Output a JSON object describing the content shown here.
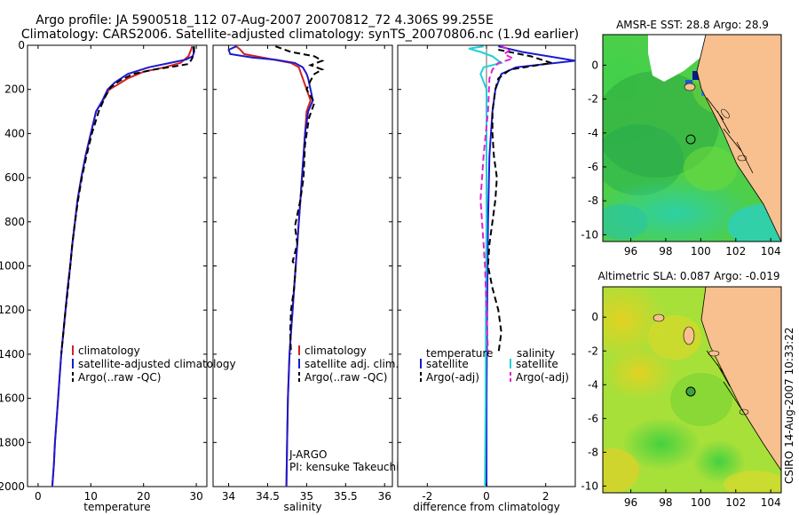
{
  "header": {
    "title_line1": "Argo profile: JA 5900518_112 07-Aug-2007 20070812_72 4.306S 99.255E",
    "title_line2": "Climatology: CARS2006. Satellite-adjusted climatology: synTS_20070806.nc (1.9d earlier)"
  },
  "side_label": "CSIRO 14-Aug-2007 10:33:22",
  "chart_data": [
    {
      "type": "line",
      "panel": "temperature",
      "xlabel": "temperature",
      "ylabel": "",
      "xlim": [
        -2,
        32
      ],
      "ylim": [
        2000,
        0
      ],
      "xticks": [
        0,
        10,
        20,
        30
      ],
      "yticks": [
        0,
        200,
        400,
        600,
        800,
        1000,
        1200,
        1400,
        1600,
        1800,
        2000
      ],
      "legend": [
        "climatology",
        "satellite-adjusted climatology",
        "Argo(..raw -QC)"
      ],
      "series": [
        {
          "name": "climatology",
          "color": "#d42020",
          "dash": "",
          "points": [
            [
              29.2,
              5
            ],
            [
              29,
              20
            ],
            [
              28.5,
              50
            ],
            [
              27,
              80
            ],
            [
              24,
              100
            ],
            [
              20,
              120
            ],
            [
              17,
              150
            ],
            [
              15,
              180
            ],
            [
              13.5,
              200
            ],
            [
              12.3,
              250
            ],
            [
              11,
              300
            ],
            [
              10,
              400
            ],
            [
              9,
              500
            ],
            [
              8.2,
              600
            ],
            [
              7.5,
              700
            ],
            [
              7,
              800
            ],
            [
              6.5,
              900
            ],
            [
              6.1,
              1000
            ],
            [
              5.6,
              1100
            ],
            [
              5.2,
              1200
            ],
            [
              4.8,
              1300
            ],
            [
              4.4,
              1400
            ],
            [
              4.1,
              1500
            ],
            [
              3.8,
              1600
            ],
            [
              3.5,
              1700
            ],
            [
              3.2,
              1800
            ],
            [
              3,
              1900
            ],
            [
              2.7,
              2000
            ]
          ]
        },
        {
          "name": "satellite-adjusted climatology",
          "color": "#1a1ad0",
          "dash": "",
          "points": [
            [
              29.6,
              5
            ],
            [
              29.6,
              30
            ],
            [
              29.3,
              50
            ],
            [
              28,
              65
            ],
            [
              25,
              80
            ],
            [
              21,
              100
            ],
            [
              17,
              130
            ],
            [
              14.5,
              170
            ],
            [
              13.2,
              200
            ],
            [
              12.2,
              250
            ],
            [
              11,
              300
            ],
            [
              10,
              400
            ],
            [
              9,
              500
            ],
            [
              8.2,
              600
            ],
            [
              7.5,
              700
            ],
            [
              7,
              800
            ],
            [
              6.5,
              900
            ],
            [
              6.1,
              1000
            ],
            [
              5.6,
              1100
            ],
            [
              5.2,
              1200
            ],
            [
              4.8,
              1300
            ],
            [
              4.4,
              1400
            ],
            [
              4.1,
              1500
            ],
            [
              3.8,
              1600
            ],
            [
              3.5,
              1700
            ],
            [
              3.2,
              1800
            ],
            [
              3,
              1900
            ],
            [
              2.7,
              2000
            ]
          ]
        },
        {
          "name": "Argo(..raw -QC)",
          "color": "#000000",
          "dash": "7,4",
          "points": [
            [
              29.5,
              5
            ],
            [
              29.5,
              40
            ],
            [
              29.2,
              60
            ],
            [
              28.8,
              75
            ],
            [
              28.5,
              85
            ],
            [
              26,
              95
            ],
            [
              22,
              110
            ],
            [
              18,
              130
            ],
            [
              15.5,
              160
            ],
            [
              13.8,
              190
            ],
            [
              12.8,
              230
            ],
            [
              11.5,
              300
            ],
            [
              10.2,
              400
            ],
            [
              9.2,
              500
            ],
            [
              8.3,
              600
            ],
            [
              7.6,
              700
            ],
            [
              7,
              800
            ],
            [
              6.5,
              900
            ],
            [
              6.1,
              1000
            ],
            [
              5.7,
              1100
            ],
            [
              5.2,
              1200
            ],
            [
              4.8,
              1300
            ],
            [
              4.4,
              1400
            ]
          ]
        }
      ]
    },
    {
      "type": "line",
      "panel": "salinity",
      "xlabel": "salinity",
      "xlim": [
        33.8,
        36.1
      ],
      "ylim": [
        2000,
        0
      ],
      "xticks": [
        34,
        34.5,
        35,
        35.5,
        36
      ],
      "legend": [
        "climatology",
        "satellite adj. clim.",
        "Argo(..raw -QC)"
      ],
      "annotations": [
        "J-ARGO",
        "PI: kensuke Takeuchi"
      ],
      "series": [
        {
          "name": "climatology",
          "color": "#d42020",
          "dash": "",
          "points": [
            [
              34.1,
              5
            ],
            [
              34.15,
              20
            ],
            [
              34.2,
              40
            ],
            [
              34.5,
              60
            ],
            [
              34.8,
              80
            ],
            [
              34.9,
              100
            ],
            [
              34.95,
              150
            ],
            [
              35,
              200
            ],
            [
              35.05,
              250
            ],
            [
              35,
              300
            ],
            [
              34.98,
              400
            ],
            [
              34.96,
              500
            ],
            [
              34.94,
              600
            ],
            [
              34.92,
              700
            ],
            [
              34.9,
              800
            ],
            [
              34.88,
              900
            ],
            [
              34.86,
              1000
            ],
            [
              34.84,
              1100
            ],
            [
              34.82,
              1200
            ],
            [
              34.8,
              1300
            ],
            [
              34.78,
              1400
            ],
            [
              34.76,
              1600
            ],
            [
              34.75,
              1800
            ],
            [
              34.74,
              2000
            ]
          ]
        },
        {
          "name": "satellite adj. clim.",
          "color": "#1a1ad0",
          "dash": "",
          "points": [
            [
              34.1,
              5
            ],
            [
              34.0,
              20
            ],
            [
              34.02,
              40
            ],
            [
              34.3,
              55
            ],
            [
              34.6,
              65
            ],
            [
              34.85,
              80
            ],
            [
              34.95,
              100
            ],
            [
              35,
              130
            ],
            [
              35.02,
              150
            ],
            [
              35.05,
              200
            ],
            [
              35.08,
              250
            ],
            [
              35.02,
              300
            ],
            [
              34.98,
              400
            ],
            [
              34.96,
              500
            ],
            [
              34.94,
              600
            ],
            [
              34.92,
              700
            ],
            [
              34.9,
              800
            ],
            [
              34.88,
              900
            ],
            [
              34.86,
              1000
            ],
            [
              34.84,
              1100
            ],
            [
              34.82,
              1200
            ],
            [
              34.8,
              1300
            ],
            [
              34.78,
              1400
            ],
            [
              34.76,
              1600
            ],
            [
              34.75,
              1800
            ],
            [
              34.74,
              2000
            ]
          ]
        },
        {
          "name": "Argo(..raw -QC)",
          "color": "#000000",
          "dash": "7,4",
          "points": [
            [
              34.6,
              5
            ],
            [
              34.8,
              30
            ],
            [
              35.1,
              50
            ],
            [
              35.2,
              70
            ],
            [
              35.05,
              90
            ],
            [
              35.2,
              110
            ],
            [
              35.1,
              130
            ],
            [
              35.05,
              160
            ],
            [
              35.0,
              200
            ],
            [
              35.1,
              260
            ],
            [
              35.03,
              330
            ],
            [
              34.98,
              450
            ],
            [
              34.96,
              600
            ],
            [
              34.92,
              700
            ],
            [
              34.85,
              820
            ],
            [
              34.88,
              900
            ],
            [
              34.82,
              980
            ],
            [
              34.86,
              1000
            ],
            [
              34.84,
              1100
            ],
            [
              34.8,
              1200
            ],
            [
              34.79,
              1300
            ],
            [
              34.8,
              1400
            ]
          ]
        }
      ]
    },
    {
      "type": "line",
      "panel": "difference",
      "xlabel": "difference from climatology",
      "xlim": [
        -3,
        3
      ],
      "ylim": [
        2000,
        0
      ],
      "xticks": [
        -2,
        0,
        2
      ],
      "legend_titles": [
        "temperature",
        "salinity"
      ],
      "legend": [
        "satellite",
        "Argo(-adj)",
        "satellite",
        "Argo(-adj)"
      ],
      "series": [
        {
          "name": "satellite",
          "color": "#1a1ad0",
          "dash": "",
          "points": [
            [
              0.4,
              5
            ],
            [
              1.2,
              30
            ],
            [
              3,
              70
            ],
            [
              1,
              100
            ],
            [
              0.5,
              130
            ],
            [
              0.3,
              200
            ],
            [
              0.2,
              300
            ],
            [
              0.1,
              500
            ],
            [
              0.05,
              800
            ],
            [
              0.02,
              1200
            ],
            [
              0,
              1600
            ],
            [
              0,
              2000
            ]
          ]
        },
        {
          "name": "Argo(-adj)",
          "color": "#000000",
          "dash": "7,4",
          "points": [
            [
              0.4,
              20
            ],
            [
              1.5,
              50
            ],
            [
              2.2,
              80
            ],
            [
              0.8,
              110
            ],
            [
              0.4,
              150
            ],
            [
              0.3,
              200
            ],
            [
              0.2,
              300
            ],
            [
              0.2,
              400
            ],
            [
              0.25,
              500
            ],
            [
              0.35,
              600
            ],
            [
              0.3,
              700
            ],
            [
              0.2,
              800
            ],
            [
              0.1,
              900
            ],
            [
              0.05,
              1000
            ],
            [
              0.2,
              1100
            ],
            [
              0.4,
              1200
            ],
            [
              0.5,
              1300
            ],
            [
              0.4,
              1400
            ]
          ]
        },
        {
          "name": "satellite",
          "color": "#20d0d8",
          "dash": "",
          "points": [
            [
              -0.1,
              5
            ],
            [
              -0.6,
              15
            ],
            [
              -0.2,
              30
            ],
            [
              0.2,
              50
            ],
            [
              0.5,
              80
            ],
            [
              -0.1,
              100
            ],
            [
              -0.2,
              130
            ],
            [
              0,
              200
            ],
            [
              0,
              400
            ],
            [
              0,
              800
            ],
            [
              -0.02,
              1200
            ],
            [
              -0.03,
              1600
            ],
            [
              -0.05,
              2000
            ]
          ]
        },
        {
          "name": "Argo(-adj)",
          "color": "#e020d0",
          "dash": "7,4",
          "points": [
            [
              0.5,
              5
            ],
            [
              0.8,
              20
            ],
            [
              0.6,
              40
            ],
            [
              0.9,
              60
            ],
            [
              0.4,
              80
            ],
            [
              0.2,
              110
            ],
            [
              0.1,
              150
            ],
            [
              0.05,
              300
            ],
            [
              -0.1,
              500
            ],
            [
              -0.2,
              700
            ],
            [
              -0.15,
              800
            ],
            [
              -0.1,
              900
            ],
            [
              -0.05,
              1000
            ],
            [
              0,
              1200
            ],
            [
              0.05,
              1400
            ]
          ]
        }
      ]
    },
    {
      "type": "heatmap",
      "panel": "sst_map",
      "title": "AMSR-E SST: 28.8 Argo: 28.9",
      "xlim": [
        94.4,
        104.6
      ],
      "ylim": [
        -10.4,
        1.8
      ],
      "xticks": [
        96,
        98,
        100,
        102,
        104
      ],
      "yticks": [
        0,
        -2,
        -4,
        -6,
        -8,
        -10
      ],
      "argo_position": [
        99.255,
        -4.306
      ]
    },
    {
      "type": "heatmap",
      "panel": "sla_map",
      "title": "Altimetric SLA: 0.087 Argo: -0.019",
      "xlim": [
        94.4,
        104.6
      ],
      "ylim": [
        -10.4,
        1.8
      ],
      "xticks": [
        96,
        98,
        100,
        102,
        104
      ],
      "yticks": [
        0,
        -2,
        -4,
        -6,
        -8,
        -10
      ],
      "argo_position": [
        99.255,
        -4.306
      ]
    }
  ]
}
